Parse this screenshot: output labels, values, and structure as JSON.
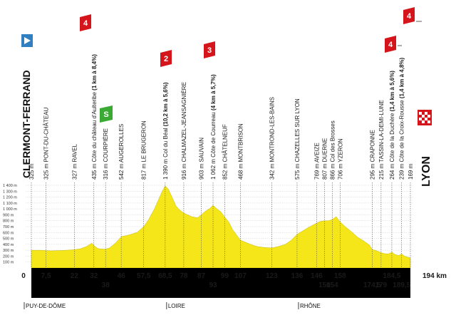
{
  "chart_data": {
    "type": "area",
    "title": "",
    "xlabel": "",
    "ylabel": "",
    "unit_x": "km",
    "total_km_label": "194 km",
    "start_city": "CLERMONT-FERRAND",
    "finish_city": "LYON",
    "start_alt_label": "325 m",
    "finish_alt_label": "169 m",
    "ylim": [
      0,
      1400
    ],
    "y_ticks": [
      "1 400 m",
      "1 300 m",
      "1 200 m",
      "1 100 m",
      "1 000 m",
      "900 m",
      "800 m",
      "700 m",
      "600 m",
      "500 m",
      "400 m",
      "300 m",
      "200 m",
      "100 m"
    ],
    "xlim": [
      0,
      194
    ],
    "profile": [
      [
        0,
        300
      ],
      [
        5,
        300
      ],
      [
        10,
        290
      ],
      [
        15,
        295
      ],
      [
        20,
        305
      ],
      [
        22,
        310
      ],
      [
        25,
        325
      ],
      [
        28,
        360
      ],
      [
        30,
        400
      ],
      [
        31,
        420
      ],
      [
        32,
        380
      ],
      [
        34,
        330
      ],
      [
        36,
        320
      ],
      [
        38,
        320
      ],
      [
        40,
        340
      ],
      [
        43,
        420
      ],
      [
        46,
        530
      ],
      [
        50,
        560
      ],
      [
        54,
        600
      ],
      [
        57.5,
        700
      ],
      [
        60,
        820
      ],
      [
        63,
        1000
      ],
      [
        65,
        1150
      ],
      [
        67,
        1300
      ],
      [
        68.5,
        1390
      ],
      [
        70,
        1340
      ],
      [
        72,
        1200
      ],
      [
        74,
        1050
      ],
      [
        76,
        980
      ],
      [
        78,
        930
      ],
      [
        80,
        900
      ],
      [
        82,
        870
      ],
      [
        85,
        850
      ],
      [
        87,
        900
      ],
      [
        89,
        960
      ],
      [
        91,
        1000
      ],
      [
        93,
        1060
      ],
      [
        95,
        1000
      ],
      [
        97,
        950
      ],
      [
        99,
        860
      ],
      [
        101,
        780
      ],
      [
        103,
        650
      ],
      [
        105,
        560
      ],
      [
        107,
        470
      ],
      [
        110,
        430
      ],
      [
        113,
        390
      ],
      [
        116,
        360
      ],
      [
        120,
        345
      ],
      [
        123,
        340
      ],
      [
        126,
        360
      ],
      [
        130,
        400
      ],
      [
        133,
        470
      ],
      [
        136,
        570
      ],
      [
        139,
        630
      ],
      [
        142,
        690
      ],
      [
        146,
        760
      ],
      [
        148,
        790
      ],
      [
        150,
        800
      ],
      [
        152,
        800
      ],
      [
        154,
        820
      ],
      [
        156,
        870
      ],
      [
        158,
        780
      ],
      [
        161,
        690
      ],
      [
        164,
        610
      ],
      [
        167,
        520
      ],
      [
        170,
        460
      ],
      [
        173,
        390
      ],
      [
        174.5,
        310
      ],
      [
        176,
        300
      ],
      [
        179,
        260
      ],
      [
        181,
        240
      ],
      [
        183,
        240
      ],
      [
        184.5,
        270
      ],
      [
        186,
        230
      ],
      [
        188,
        210
      ],
      [
        189.5,
        239
      ],
      [
        191,
        200
      ],
      [
        194,
        169
      ]
    ],
    "km_markers_top": [
      "0",
      "7,5",
      "22",
      "32",
      "46",
      "57,5",
      "68,5",
      "78",
      "87",
      "99",
      "107",
      "123",
      "136",
      "146",
      "158",
      "184,5",
      "194 km"
    ],
    "km_markers_bottom": [
      "38",
      "93",
      "150",
      "154",
      "174,5",
      "179",
      "189,5"
    ],
    "km_top_positions": [
      0,
      7.5,
      22,
      32,
      46,
      57.5,
      68.5,
      78,
      87,
      99,
      107,
      123,
      136,
      146,
      158,
      184.5,
      194
    ],
    "km_bottom_positions": [
      38,
      93,
      150,
      154,
      174.5,
      179,
      189.5
    ],
    "waypoints": [
      {
        "km": 0,
        "alt": 325,
        "label": "325 m",
        "bold": ""
      },
      {
        "km": 7.5,
        "alt": 325,
        "label": "325 m PONT-DU-CHÂTEAU",
        "bold": ""
      },
      {
        "km": 22,
        "alt": 327,
        "label": "327 m RAVEL",
        "bold": ""
      },
      {
        "km": 32,
        "alt": 435,
        "label": "435 m Côte du château d'Aulteribe ",
        "bold": "(1 km à 8,4%)"
      },
      {
        "km": 38,
        "alt": 316,
        "label": "316 m COURPIÈRE",
        "bold": ""
      },
      {
        "km": 46,
        "alt": 542,
        "label": "542 m AUGEROLLES",
        "bold": ""
      },
      {
        "km": 57.5,
        "alt": 817,
        "label": "817 m LE BRUGERON",
        "bold": ""
      },
      {
        "km": 68.5,
        "alt": 1390,
        "label": "1 390 m Col du Béal ",
        "bold": "(10,2 km à 5,6%)"
      },
      {
        "km": 78,
        "alt": 916,
        "label": "916 m CHALMAZEL-JEANSAGNIÈRE",
        "bold": ""
      },
      {
        "km": 87,
        "alt": 903,
        "label": "903 m SAUVAIN",
        "bold": ""
      },
      {
        "km": 93,
        "alt": 1062,
        "label": "1 062 m Côte de Courreau ",
        "bold": "(4 km à 5,7%)"
      },
      {
        "km": 99,
        "alt": 852,
        "label": "852 m CHÂTELNEUF",
        "bold": ""
      },
      {
        "km": 107,
        "alt": 468,
        "label": "468 m MONTBRISON",
        "bold": ""
      },
      {
        "km": 123,
        "alt": 342,
        "label": "342 m MONTROND-LES-BAINS",
        "bold": ""
      },
      {
        "km": 136,
        "alt": 575,
        "label": "575 m CHAZELLES SUR LYON",
        "bold": ""
      },
      {
        "km": 146,
        "alt": 769,
        "label": "769 m AVEIZE",
        "bold": ""
      },
      {
        "km": 150,
        "alt": 807,
        "label": "807 m DUERNE",
        "bold": ""
      },
      {
        "km": 154,
        "alt": 866,
        "label": "866 m Col des Brosses",
        "bold": ""
      },
      {
        "km": 158,
        "alt": 706,
        "label": "706 m YZERON",
        "bold": ""
      },
      {
        "km": 174.5,
        "alt": 295,
        "label": "295 m CRAPONNE",
        "bold": ""
      },
      {
        "km": 179,
        "alt": 215,
        "label": "215 m TASSIN-LA-DEMI-LUNE",
        "bold": ""
      },
      {
        "km": 184.5,
        "alt": 264,
        "label": "264 m Côte de la Duchère ",
        "bold": "(1,4 km à 5,6%)"
      },
      {
        "km": 189.5,
        "alt": 239,
        "label": "239 m Côte de la Croix-Rousse ",
        "bold": "(1,4 km à 4,8%)"
      },
      {
        "km": 194,
        "alt": 169,
        "label": "169 m",
        "bold": ""
      }
    ],
    "climbs": [
      {
        "km": 32,
        "category": "4",
        "color": "#d4161c"
      },
      {
        "km": 68.5,
        "category": "2",
        "color": "#d4161c"
      },
      {
        "km": 93,
        "category": "3",
        "color": "#d4161c"
      },
      {
        "km": 184.5,
        "category": "4",
        "color": "#d4161c"
      },
      {
        "km": 189.5,
        "category": "4",
        "color": "#d4161c"
      }
    ],
    "sprint": {
      "km": 38,
      "label": "S",
      "color": "#3aaa35"
    },
    "regions": [
      "PUY-DE-DÔME",
      "LOIRE",
      "RHÔNE"
    ],
    "region_start_km": [
      0,
      68.5,
      136
    ],
    "colors": {
      "profile": "#f5e61a",
      "strip": "#000000",
      "start_flag": "#2f7fc1",
      "climb_flag": "#d4161c",
      "sprint_flag": "#3aaa35",
      "grid": "#cfcfcf"
    }
  }
}
